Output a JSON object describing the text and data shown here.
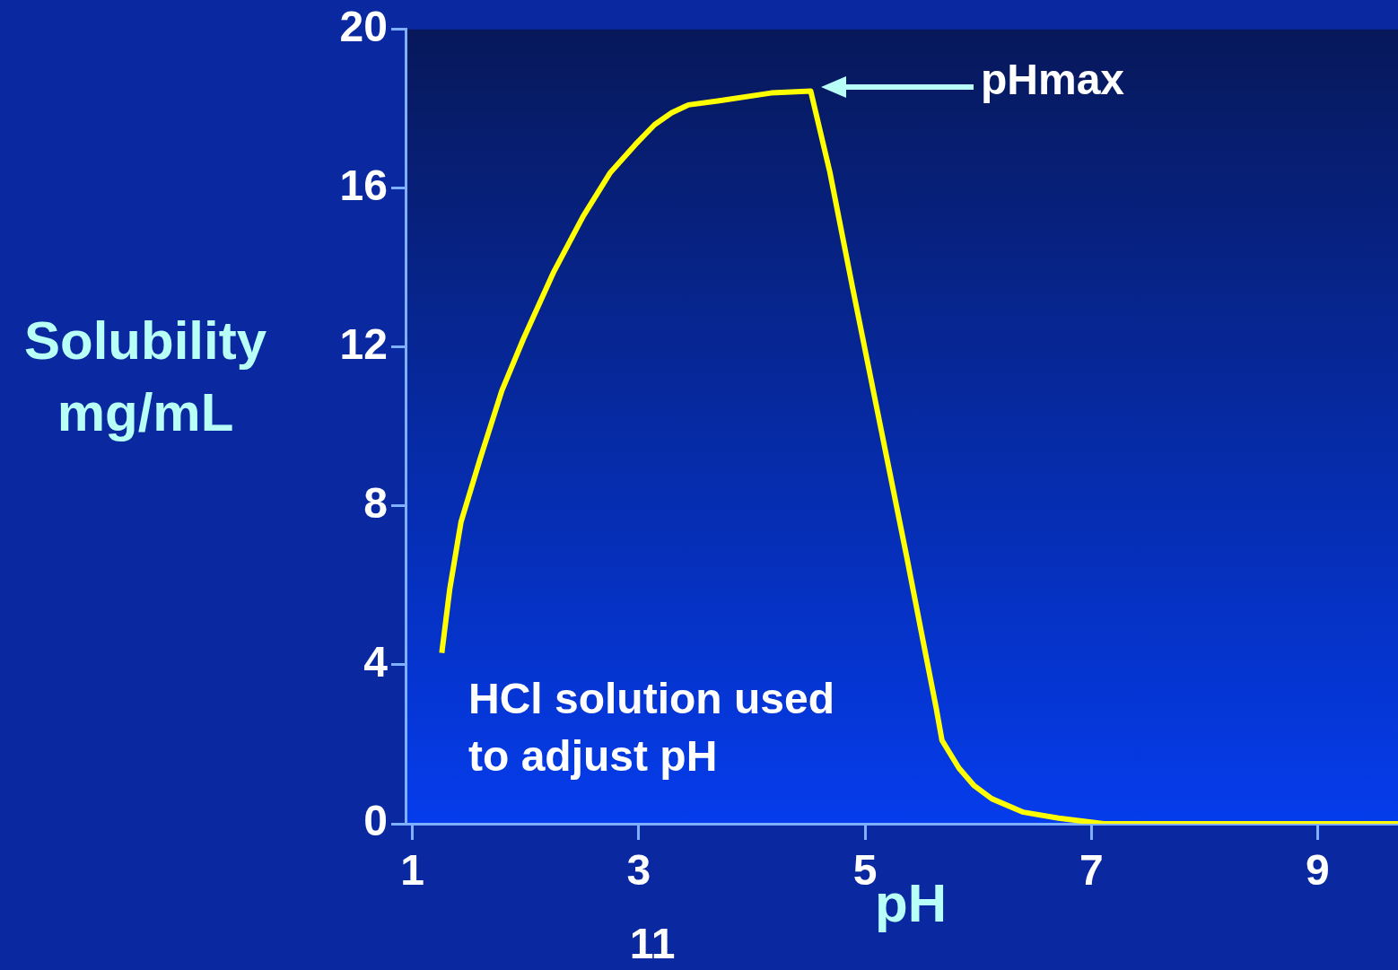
{
  "chart_data": {
    "type": "line",
    "xlabel": "pH",
    "ylabel": "Solubility mg/mL",
    "x": [
      1.26,
      1.33,
      1.43,
      1.6,
      1.79,
      1.98,
      2.25,
      2.51,
      2.75,
      2.97,
      3.14,
      3.29,
      3.44,
      3.7,
      4.17,
      4.52,
      4.69,
      4.89,
      5.13,
      5.37,
      5.52,
      5.63,
      5.68,
      5.83,
      5.96,
      6.12,
      6.4,
      6.71,
      7.11,
      9.71
    ],
    "series": [
      {
        "color": "#ffff00",
        "values": [
          4.3,
          5.9,
          7.6,
          9.2,
          10.9,
          12.2,
          13.9,
          15.3,
          16.4,
          17.1,
          17.6,
          17.9,
          18.1,
          18.2,
          18.4,
          18.45,
          16.4,
          13.5,
          10.1,
          6.7,
          4.5,
          2.9,
          2.1,
          1.4,
          0.97,
          0.63,
          0.29,
          0.14,
          0,
          0
        ]
      }
    ],
    "xlim": [
      0.94,
      9.71
    ],
    "xticks": [
      1,
      3,
      5,
      7,
      9
    ],
    "ylim": [
      0,
      20
    ],
    "yticks": [
      0,
      4,
      8,
      12,
      16,
      20
    ],
    "grid": false,
    "legend": false,
    "marker": "none",
    "line_style": "solid",
    "annotations": [
      "pHmax",
      "HCl solution used to adjust pH",
      "11"
    ]
  }
}
